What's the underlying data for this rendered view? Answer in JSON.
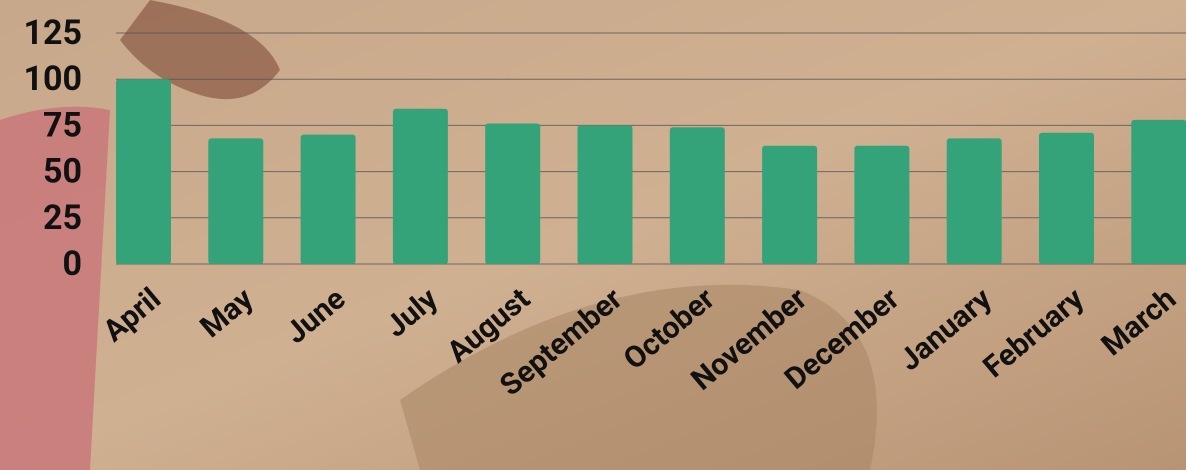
{
  "chart_data": {
    "type": "bar",
    "categories": [
      "April",
      "May",
      "June",
      "July",
      "August",
      "September",
      "October",
      "November",
      "December",
      "January",
      "February",
      "March"
    ],
    "values": [
      100,
      68,
      70,
      84,
      76,
      75,
      74,
      64,
      64,
      68,
      71,
      78
    ],
    "color": "#35a37a",
    "ylim": [
      0,
      125
    ],
    "yticks": [
      0,
      25,
      50,
      75,
      100,
      125
    ],
    "grid": true
  }
}
